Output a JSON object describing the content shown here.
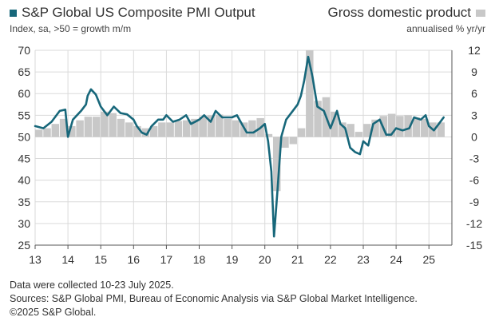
{
  "colors": {
    "pmi_line": "#17677a",
    "gdp_bar": "#c8c8c8",
    "grid": "#dadada",
    "axis_text": "#333333"
  },
  "legend": {
    "left_title": "S&P Global US Composite PMI Output",
    "left_subtitle": "Index, sa, >50 = growth m/m",
    "right_title": "Gross domestic product",
    "right_subtitle": "annualised % yr/yr"
  },
  "chart_data": {
    "type": "line",
    "x_tick_labels": [
      "13",
      "14",
      "15",
      "16",
      "17",
      "18",
      "19",
      "20",
      "21",
      "22",
      "23",
      "24",
      "25"
    ],
    "y_left": {
      "ylim": [
        25,
        70
      ],
      "ticks": [
        25,
        30,
        35,
        40,
        45,
        50,
        55,
        60,
        65,
        70
      ]
    },
    "y_right": {
      "ylim": [
        -15,
        12
      ],
      "ticks": [
        -15,
        -12,
        -9,
        -6,
        -3,
        0,
        3,
        6,
        9,
        12
      ]
    },
    "grid": true,
    "series": [
      {
        "name": "S&P Global US Composite PMI Output",
        "axis": "left",
        "kind": "line",
        "points": [
          [
            2013.0,
            52.5
          ],
          [
            2013.25,
            52.0
          ],
          [
            2013.5,
            53.5
          ],
          [
            2013.75,
            56.0
          ],
          [
            2013.92,
            56.3
          ],
          [
            2014.0,
            50.0
          ],
          [
            2014.15,
            54.0
          ],
          [
            2014.4,
            56.0
          ],
          [
            2014.55,
            57.5
          ],
          [
            2014.6,
            59.5
          ],
          [
            2014.7,
            61.0
          ],
          [
            2014.85,
            59.8
          ],
          [
            2015.0,
            57.0
          ],
          [
            2015.2,
            55.0
          ],
          [
            2015.4,
            57.0
          ],
          [
            2015.6,
            55.5
          ],
          [
            2015.8,
            55.2
          ],
          [
            2016.0,
            54.0
          ],
          [
            2016.1,
            52.5
          ],
          [
            2016.25,
            51.0
          ],
          [
            2016.4,
            50.5
          ],
          [
            2016.55,
            52.5
          ],
          [
            2016.75,
            54.0
          ],
          [
            2016.9,
            54.0
          ],
          [
            2017.0,
            55.0
          ],
          [
            2017.2,
            53.5
          ],
          [
            2017.4,
            54.0
          ],
          [
            2017.6,
            55.0
          ],
          [
            2017.75,
            53.0
          ],
          [
            2018.0,
            54.0
          ],
          [
            2018.15,
            55.0
          ],
          [
            2018.35,
            53.5
          ],
          [
            2018.5,
            56.0
          ],
          [
            2018.7,
            54.5
          ],
          [
            2018.9,
            54.5
          ],
          [
            2019.0,
            54.5
          ],
          [
            2019.15,
            55.0
          ],
          [
            2019.3,
            53.0
          ],
          [
            2019.45,
            51.0
          ],
          [
            2019.65,
            51.0
          ],
          [
            2019.85,
            52.0
          ],
          [
            2020.0,
            53.0
          ],
          [
            2020.1,
            49.0
          ],
          [
            2020.2,
            42.0
          ],
          [
            2020.28,
            27.0
          ],
          [
            2020.38,
            37.0
          ],
          [
            2020.5,
            50.0
          ],
          [
            2020.65,
            54.0
          ],
          [
            2020.85,
            56.0
          ],
          [
            2021.0,
            57.5
          ],
          [
            2021.1,
            59.5
          ],
          [
            2021.2,
            63.0
          ],
          [
            2021.32,
            68.5
          ],
          [
            2021.45,
            64.0
          ],
          [
            2021.6,
            57.0
          ],
          [
            2021.8,
            56.0
          ],
          [
            2022.0,
            52.0
          ],
          [
            2022.1,
            54.0
          ],
          [
            2022.2,
            56.0
          ],
          [
            2022.3,
            53.0
          ],
          [
            2022.45,
            52.0
          ],
          [
            2022.6,
            47.5
          ],
          [
            2022.75,
            46.5
          ],
          [
            2022.9,
            46.0
          ],
          [
            2023.0,
            49.0
          ],
          [
            2023.15,
            48.0
          ],
          [
            2023.3,
            53.0
          ],
          [
            2023.5,
            54.0
          ],
          [
            2023.7,
            50.5
          ],
          [
            2023.85,
            50.5
          ],
          [
            2024.0,
            52.0
          ],
          [
            2024.2,
            51.5
          ],
          [
            2024.4,
            52.0
          ],
          [
            2024.55,
            54.5
          ],
          [
            2024.75,
            54.0
          ],
          [
            2024.9,
            55.0
          ],
          [
            2025.0,
            52.5
          ],
          [
            2025.15,
            51.5
          ],
          [
            2025.3,
            53.0
          ],
          [
            2025.45,
            54.5
          ]
        ]
      },
      {
        "name": "Gross domestic product",
        "axis": "right",
        "kind": "bar",
        "points": [
          [
            2013.0,
            1.0
          ],
          [
            2013.25,
            1.2
          ],
          [
            2013.5,
            1.8
          ],
          [
            2013.75,
            2.5
          ],
          [
            2014.0,
            1.5
          ],
          [
            2014.25,
            2.3
          ],
          [
            2014.5,
            2.8
          ],
          [
            2014.75,
            2.8
          ],
          [
            2015.0,
            3.5
          ],
          [
            2015.25,
            3.3
          ],
          [
            2015.5,
            2.5
          ],
          [
            2015.75,
            2.0
          ],
          [
            2016.0,
            1.5
          ],
          [
            2016.25,
            1.2
          ],
          [
            2016.5,
            1.5
          ],
          [
            2016.75,
            2.0
          ],
          [
            2017.0,
            2.0
          ],
          [
            2017.25,
            2.2
          ],
          [
            2017.5,
            2.3
          ],
          [
            2017.75,
            2.5
          ],
          [
            2018.0,
            2.8
          ],
          [
            2018.25,
            3.0
          ],
          [
            2018.5,
            3.1
          ],
          [
            2018.75,
            2.5
          ],
          [
            2019.0,
            2.3
          ],
          [
            2019.25,
            2.0
          ],
          [
            2019.5,
            2.3
          ],
          [
            2019.75,
            2.6
          ],
          [
            2020.0,
            0.4
          ],
          [
            2020.25,
            -7.5
          ],
          [
            2020.5,
            -1.5
          ],
          [
            2020.75,
            -1.0
          ],
          [
            2021.0,
            1.2
          ],
          [
            2021.25,
            12.0
          ],
          [
            2021.5,
            5.0
          ],
          [
            2021.75,
            5.5
          ],
          [
            2022.0,
            3.5
          ],
          [
            2022.25,
            2.0
          ],
          [
            2022.5,
            1.8
          ],
          [
            2022.75,
            0.7
          ],
          [
            2023.0,
            1.8
          ],
          [
            2023.25,
            2.4
          ],
          [
            2023.5,
            2.9
          ],
          [
            2023.75,
            3.2
          ],
          [
            2024.0,
            2.9
          ],
          [
            2024.25,
            3.0
          ],
          [
            2024.5,
            2.7
          ],
          [
            2024.75,
            2.5
          ],
          [
            2025.0,
            2.0
          ],
          [
            2025.25,
            2.0
          ]
        ]
      }
    ]
  },
  "footer": {
    "line1": "Data were collected 10-23 July 2025.",
    "line2": "Sources: S&P Global PMI, Bureau of Economic Analysis via S&P Global Market Intelligence.",
    "line3": "©2025 S&P Global."
  }
}
